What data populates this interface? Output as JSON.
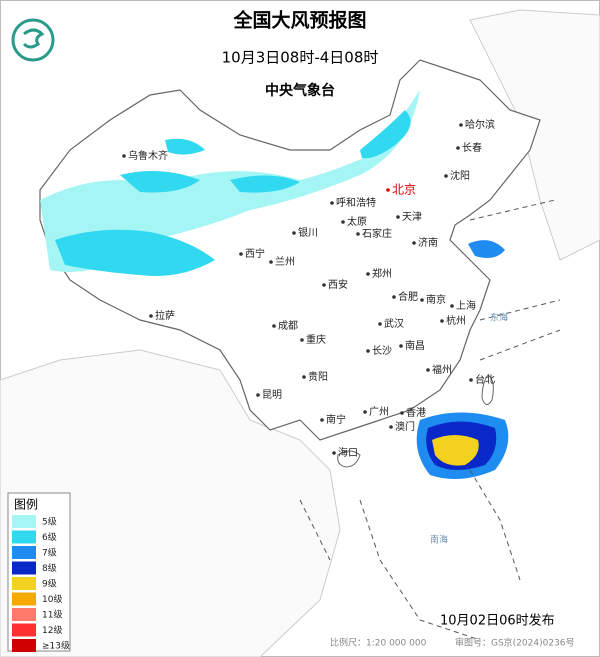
{
  "header": {
    "title": "全国大风预报图",
    "subtitle": "10月3日08时-4日08时",
    "issuer": "中央气象台"
  },
  "map": {
    "cities": [
      "乌鲁木齐",
      "哈尔滨",
      "长春",
      "沈阳",
      "北京",
      "呼和浩特",
      "天津",
      "银川",
      "太原",
      "石家庄",
      "济南",
      "西宁",
      "兰州",
      "郑州",
      "西安",
      "合肥",
      "南京",
      "上海",
      "拉萨",
      "成都",
      "武汉",
      "杭州",
      "重庆",
      "长沙",
      "南昌",
      "福州",
      "台北",
      "贵阳",
      "昆明",
      "南宁",
      "广州",
      "香港",
      "澳门",
      "海口"
    ],
    "seas": [
      "东海",
      "南海"
    ]
  },
  "legend": {
    "title": "图例",
    "items": [
      {
        "label": "5级",
        "color": "#a6f5f5"
      },
      {
        "label": "6级",
        "color": "#30d8f0"
      },
      {
        "label": "7级",
        "color": "#1e8cf0"
      },
      {
        "label": "8级",
        "color": "#0a28c8"
      },
      {
        "label": "9级",
        "color": "#f2d21e"
      },
      {
        "label": "10级",
        "color": "#f5a800"
      },
      {
        "label": "11级",
        "color": "#ff7a6a"
      },
      {
        "label": "12级",
        "color": "#ff3030"
      },
      {
        "label": "≥13级",
        "color": "#d00000"
      }
    ]
  },
  "footer": {
    "release": "10月02日06时发布",
    "scale": "比例尺：1:20 000 000",
    "approval": "审图号：GS京(2024)0236号"
  }
}
